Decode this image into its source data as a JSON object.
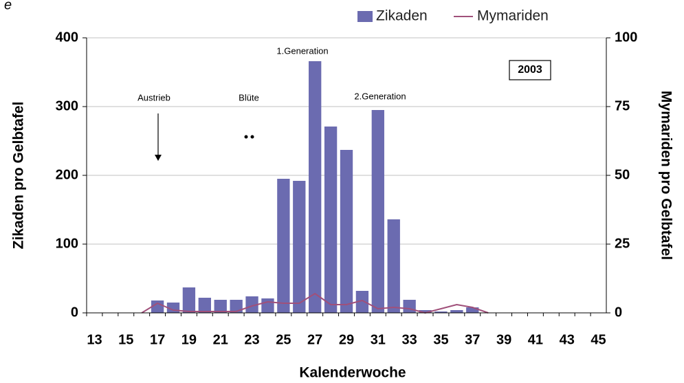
{
  "chart_data": {
    "type": "bar",
    "x_label": "Kalenderwoche",
    "y_label": "Zikaden pro Gelbtafel",
    "y2_label": "Mymariden pro Gelbtafel",
    "categories": [
      "13",
      null,
      "15",
      null,
      "17",
      null,
      "19",
      null,
      "21",
      null,
      "23",
      null,
      "25",
      null,
      "27",
      null,
      "29",
      null,
      "31",
      null,
      "33",
      null,
      "35",
      null,
      "37",
      null,
      "39",
      null,
      "41",
      null,
      "43",
      null,
      "45"
    ],
    "series": [
      {
        "name": "Zikaden",
        "color": "#6b6bb0",
        "type": "bar",
        "values": [
          0,
          0,
          0,
          0,
          18,
          15,
          37,
          22,
          19,
          19,
          24,
          21,
          195,
          192,
          366,
          271,
          237,
          32,
          295,
          136,
          19,
          4,
          2,
          4,
          8,
          0,
          0,
          0,
          0,
          0,
          0,
          0,
          0
        ]
      },
      {
        "name": "Mymariden",
        "color": "#a0507a",
        "type": "line",
        "axis": "y2",
        "values": [
          null,
          null,
          null,
          0,
          3.5,
          1,
          0.5,
          0.5,
          0.5,
          0.5,
          2.5,
          4,
          3.5,
          3.5,
          7,
          3,
          3,
          4.5,
          1.5,
          2,
          1.5,
          0,
          1.5,
          3,
          2,
          0,
          null,
          null,
          null,
          null,
          null,
          null,
          null
        ]
      }
    ],
    "ylim": [
      0,
      400
    ],
    "yticks": [
      0,
      100,
      200,
      300,
      400
    ],
    "y2lim": [
      0,
      100
    ],
    "y2ticks": [
      0,
      25,
      50,
      75,
      100
    ],
    "grid": true,
    "legend": "top",
    "annotations": [
      "1.Generation",
      "Austrieb",
      "Blüte",
      "2.Generation",
      "2003",
      "e"
    ]
  }
}
